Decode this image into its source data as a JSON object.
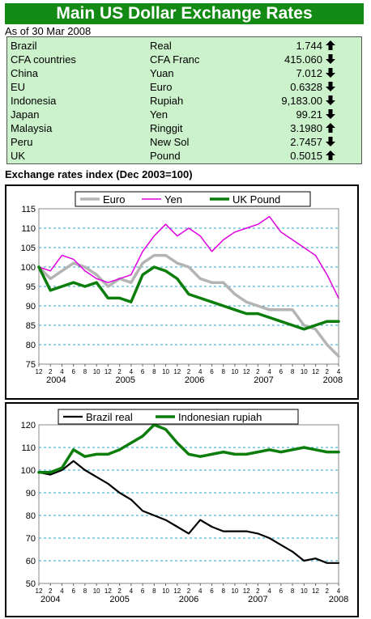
{
  "header": {
    "title": "Main US Dollar Exchange Rates",
    "as_of": "As of 30 Mar 2008"
  },
  "rates": [
    {
      "country": "Brazil",
      "currency": "Real",
      "value": "1.744",
      "direction": "up"
    },
    {
      "country": "CFA countries",
      "currency": "CFA Franc",
      "value": "415.060",
      "direction": "down"
    },
    {
      "country": "China",
      "currency": "Yuan",
      "value": "7.012",
      "direction": "down"
    },
    {
      "country": "EU",
      "currency": "Euro",
      "value": "0.6328",
      "direction": "down"
    },
    {
      "country": "Indonesia",
      "currency": "Rupiah",
      "value": "9,183.00",
      "direction": "down"
    },
    {
      "country": "Japan",
      "currency": "Yen",
      "value": "99.21",
      "direction": "down"
    },
    {
      "country": "Malaysia",
      "currency": "Ringgit",
      "value": "3.1980",
      "direction": "up"
    },
    {
      "country": "Peru",
      "currency": "New Sol",
      "value": "2.7457",
      "direction": "down"
    },
    {
      "country": "UK",
      "currency": "Pound",
      "value": "0.5015",
      "direction": "up"
    }
  ],
  "section_title": "Exchange rates index (Dec 2003=100)",
  "colors": {
    "banner": "#138a13",
    "table_bg": "#ccf2cc",
    "euro": "#b4b4b4",
    "yen": "#e000e0",
    "pound": "#0a7d0a",
    "real": "#000000",
    "rupiah": "#0a7d0a",
    "gridline": "#2aa7c8"
  },
  "chart_data": [
    {
      "type": "line",
      "title": "",
      "ylim": [
        75,
        115
      ],
      "yticks": [
        75,
        80,
        85,
        90,
        95,
        100,
        105,
        110,
        115
      ],
      "x_month_labels": [
        "12",
        "2",
        "4",
        "6",
        "8",
        "10",
        "12",
        "2",
        "4",
        "6",
        "8",
        "10",
        "12",
        "2",
        "4",
        "6",
        "8",
        "10",
        "12",
        "2",
        "4",
        "6",
        "8",
        "10",
        "12",
        "2",
        "4"
      ],
      "x_year_labels": [
        "2004",
        "2005",
        "2006",
        "2007",
        "2008"
      ],
      "legend_position": "top",
      "grid": "horizontal dashed",
      "x": [
        "Dec 2003",
        "Feb 2004",
        "Apr 2004",
        "Jun 2004",
        "Aug 2004",
        "Oct 2004",
        "Dec 2004",
        "Feb 2005",
        "Apr 2005",
        "Jun 2005",
        "Aug 2005",
        "Oct 2005",
        "Dec 2005",
        "Feb 2006",
        "Apr 2006",
        "Jun 2006",
        "Aug 2006",
        "Oct 2006",
        "Dec 2006",
        "Feb 2007",
        "Apr 2007",
        "Jun 2007",
        "Aug 2007",
        "Oct 2007",
        "Dec 2007",
        "Feb 2008",
        "Apr 2008"
      ],
      "series": [
        {
          "name": "Euro",
          "values": [
            100,
            97,
            99,
            101,
            100,
            98,
            95,
            97,
            96,
            101,
            103,
            103,
            101,
            100,
            97,
            96,
            96,
            93,
            91,
            90,
            89,
            89,
            89,
            85,
            84,
            80,
            77
          ]
        },
        {
          "name": "Yen",
          "values": [
            100,
            99,
            103,
            102,
            99,
            97,
            96,
            97,
            98,
            104,
            108,
            111,
            108,
            110,
            108,
            104,
            107,
            109,
            110,
            111,
            113,
            109,
            107,
            105,
            103,
            98,
            92
          ]
        },
        {
          "name": "UK Pound",
          "values": [
            100,
            94,
            95,
            96,
            95,
            96,
            92,
            92,
            91,
            98,
            100,
            99,
            97,
            93,
            92,
            91,
            90,
            89,
            88,
            88,
            87,
            86,
            85,
            84,
            85,
            86,
            86
          ]
        }
      ]
    },
    {
      "type": "line",
      "title": "",
      "ylim": [
        50,
        120
      ],
      "yticks": [
        50,
        60,
        70,
        80,
        90,
        100,
        110,
        120
      ],
      "x_month_labels": [
        "12",
        "2",
        "4",
        "6",
        "8",
        "10",
        "12",
        "2",
        "4",
        "6",
        "8",
        "10",
        "12",
        "2",
        "4",
        "6",
        "8",
        "10",
        "12",
        "2",
        "4",
        "6",
        "8",
        "10",
        "12",
        "2",
        "4"
      ],
      "x_year_labels": [
        "2004",
        "2005",
        "2006",
        "2007",
        "2008"
      ],
      "legend_position": "top",
      "grid": "horizontal dashed",
      "x": [
        "Dec 2003",
        "Feb 2004",
        "Apr 2004",
        "Jun 2004",
        "Aug 2004",
        "Oct 2004",
        "Dec 2004",
        "Feb 2005",
        "Apr 2005",
        "Jun 2005",
        "Aug 2005",
        "Oct 2005",
        "Dec 2005",
        "Feb 2006",
        "Apr 2006",
        "Jun 2006",
        "Aug 2006",
        "Oct 2006",
        "Dec 2006",
        "Feb 2007",
        "Apr 2007",
        "Jun 2007",
        "Aug 2007",
        "Oct 2007",
        "Dec 2007",
        "Feb 2008",
        "Apr 2008"
      ],
      "series": [
        {
          "name": "Brazil real",
          "values": [
            99,
            98,
            100,
            104,
            100,
            97,
            94,
            90,
            87,
            82,
            80,
            78,
            75,
            72,
            78,
            75,
            73,
            73,
            73,
            72,
            70,
            67,
            64,
            60,
            61,
            59,
            59
          ]
        },
        {
          "name": "Indonesian rupiah",
          "values": [
            99,
            99,
            101,
            109,
            106,
            107,
            107,
            109,
            112,
            115,
            120,
            118,
            112,
            107,
            106,
            107,
            108,
            107,
            107,
            108,
            109,
            108,
            109,
            110,
            109,
            108,
            108
          ]
        }
      ]
    }
  ]
}
